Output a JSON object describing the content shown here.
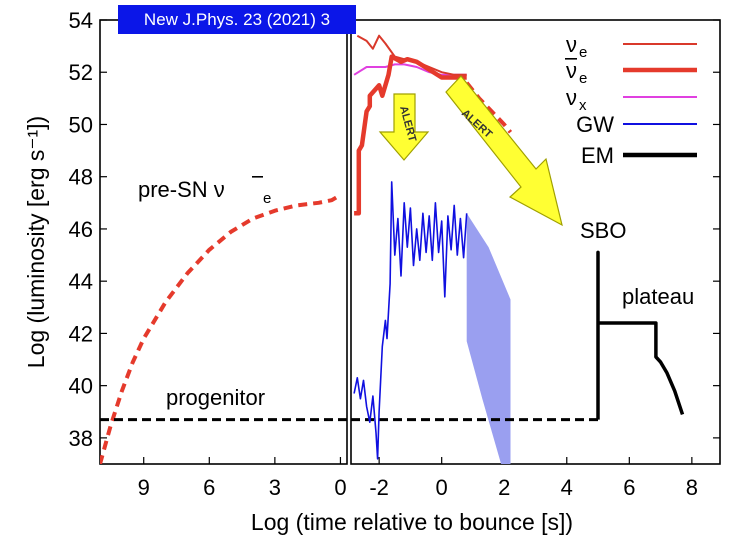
{
  "reference": "New J.Phys. 23 (2021) 3",
  "colors": {
    "nu_e": "#d9392b",
    "anti_nu_e": "#e53a2c",
    "nu_x": "#e040e0",
    "gw": "#1010e0",
    "gw_band": "#9a9ff0",
    "em": "#000000",
    "arrow_fill": "#ffff33",
    "arrow_edge": "#a0a000",
    "banner": "#0b16e8"
  },
  "chart_data": {
    "type": "line",
    "xlabel": "Log (time relative  to bounce [s])",
    "ylabel": "Log (luminosity [erg s⁻¹])",
    "ylim": [
      37,
      54
    ],
    "yticks": [
      "38",
      "40",
      "42",
      "44",
      "46",
      "48",
      "50",
      "52",
      "54"
    ],
    "left_panel": {
      "x_direction": "reversed",
      "xlim": [
        11,
        -0.3
      ],
      "xticks": [
        "9",
        "6",
        "3",
        "0"
      ]
    },
    "right_panel": {
      "xlim": [
        -2.9,
        8.9
      ],
      "xticks": [
        "-2",
        "0",
        "2",
        "4",
        "6",
        "8"
      ]
    },
    "legend": {
      "position": "top-right",
      "entries": [
        {
          "label": "ν",
          "sub": "e",
          "bar": false,
          "style": "thin"
        },
        {
          "label": "ν",
          "sub": "e",
          "bar": true,
          "style": "thick"
        },
        {
          "label": "ν",
          "sub": "x",
          "bar": false,
          "style": "thin"
        },
        {
          "label": "GW",
          "sub": "",
          "bar": false,
          "style": "thin"
        },
        {
          "label": "EM",
          "sub": "",
          "bar": false,
          "style": "thick"
        }
      ]
    },
    "annotations": {
      "pre_sn": "pre-SN ν",
      "pre_sn_sub": "e",
      "progenitor": "progenitor",
      "sbo": "SBO",
      "plateau": "plateau",
      "alert": "ALERT"
    },
    "series": [
      {
        "panel": "left",
        "style": "dashed",
        "points": [
          [
            11,
            37
          ],
          [
            10.5,
            38.5
          ],
          [
            10,
            39.8
          ],
          [
            9.5,
            40.9
          ],
          [
            9,
            41.8
          ],
          [
            8,
            43.2
          ],
          [
            7,
            44.3
          ],
          [
            6,
            45.2
          ],
          [
            5,
            45.9
          ],
          [
            4,
            46.4
          ],
          [
            3,
            46.7
          ],
          [
            2,
            46.9
          ],
          [
            1,
            47.0
          ],
          [
            0.4,
            47.1
          ],
          [
            0,
            47.3
          ]
        ]
      },
      {
        "panel": "right",
        "style": "dashed",
        "points": [
          [
            0.8,
            51.6
          ],
          [
            1.2,
            51.0
          ],
          [
            1.6,
            50.5
          ],
          [
            2.0,
            50.0
          ],
          [
            2.2,
            49.7
          ]
        ]
      },
      {
        "panel": "right",
        "style": "solid",
        "points": [
          [
            -2.7,
            53.4
          ],
          [
            -2.4,
            53.2
          ],
          [
            -2.2,
            52.9
          ],
          [
            -2.0,
            53.4
          ],
          [
            -1.8,
            53.1
          ],
          [
            -1.5,
            52.6
          ],
          [
            -1.2,
            52.5
          ],
          [
            -0.8,
            52.4
          ],
          [
            -0.4,
            52.2
          ],
          [
            0,
            52.0
          ],
          [
            0.4,
            51.9
          ],
          [
            0.8,
            51.9
          ]
        ]
      },
      {
        "panel": "right",
        "style": "solid",
        "points": [
          [
            -2.8,
            46.6
          ],
          [
            -2.65,
            46.6
          ],
          [
            -2.65,
            49.0
          ],
          [
            -2.55,
            49.2
          ],
          [
            -2.4,
            50.5
          ],
          [
            -2.3,
            50.7
          ],
          [
            -2.3,
            51.1
          ],
          [
            -2.0,
            51.5
          ],
          [
            -1.9,
            51.1
          ],
          [
            -1.7,
            51.9
          ],
          [
            -1.6,
            52.6
          ],
          [
            -1.45,
            52.5
          ],
          [
            -1.3,
            52.4
          ],
          [
            -1.1,
            52.5
          ],
          [
            -0.8,
            52.4
          ],
          [
            -0.4,
            52.1
          ],
          [
            0,
            51.8
          ],
          [
            0.4,
            51.8
          ],
          [
            0.8,
            51.8
          ]
        ]
      },
      {
        "panel": "right",
        "style": "solid",
        "points": [
          [
            -2.8,
            51.9
          ],
          [
            -2.4,
            52.2
          ],
          [
            -2.1,
            52.2
          ],
          [
            -1.8,
            52.2
          ],
          [
            -1.5,
            52.3
          ],
          [
            -1.2,
            52.3
          ],
          [
            -0.8,
            52.2
          ],
          [
            -0.4,
            52.0
          ],
          [
            0,
            51.9
          ],
          [
            0.4,
            51.9
          ],
          [
            0.8,
            51.9
          ]
        ]
      },
      {
        "panel": "right",
        "style": "solid",
        "points": [
          [
            -2.8,
            39.7
          ],
          [
            -2.7,
            40.3
          ],
          [
            -2.6,
            39.5
          ],
          [
            -2.5,
            40.2
          ],
          [
            -2.4,
            39.2
          ],
          [
            -2.3,
            38.6
          ],
          [
            -2.2,
            39.6
          ],
          [
            -2.1,
            38.2
          ],
          [
            -2.05,
            37.2
          ],
          [
            -2.0,
            39.0
          ],
          [
            -1.9,
            41.5
          ],
          [
            -1.8,
            42.5
          ],
          [
            -1.75,
            41.8
          ],
          [
            -1.65,
            43.9
          ],
          [
            -1.6,
            47.8
          ],
          [
            -1.5,
            45.0
          ],
          [
            -1.4,
            46.4
          ],
          [
            -1.3,
            44.2
          ],
          [
            -1.2,
            47.0
          ],
          [
            -1.1,
            45.3
          ],
          [
            -1.0,
            46.8
          ],
          [
            -0.9,
            44.6
          ],
          [
            -0.8,
            46.0
          ],
          [
            -0.7,
            44.8
          ],
          [
            -0.6,
            46.6
          ],
          [
            -0.5,
            45.1
          ],
          [
            -0.4,
            46.5
          ],
          [
            -0.3,
            44.8
          ],
          [
            -0.2,
            47.0
          ],
          [
            -0.1,
            45.1
          ],
          [
            0,
            46.3
          ],
          [
            0.1,
            43.4
          ],
          [
            0.2,
            46.5
          ],
          [
            0.3,
            45.2
          ],
          [
            0.4,
            46.9
          ],
          [
            0.5,
            45.0
          ],
          [
            0.6,
            46.4
          ],
          [
            0.7,
            44.9
          ],
          [
            0.8,
            46.6
          ]
        ]
      },
      {
        "panel": "right",
        "style": "band",
        "points": [
          [
            0.8,
            46.6
          ],
          [
            1.5,
            45.3
          ],
          [
            2.2,
            43.3
          ],
          [
            2.2,
            37.0
          ],
          [
            1.9,
            37.0
          ],
          [
            1.3,
            39.5
          ],
          [
            0.8,
            41.7
          ]
        ]
      },
      {
        "panel": "both",
        "style": "dashed",
        "y": 38.7,
        "x_left_from": 11,
        "x_right_to": 5.0
      },
      {
        "panel": "right",
        "style": "solid",
        "points": [
          [
            5.0,
            38.7
          ],
          [
            5.0,
            45.1
          ],
          [
            5.0,
            42.4
          ],
          [
            6.85,
            42.4
          ],
          [
            6.85,
            41.1
          ],
          [
            7.0,
            40.9
          ],
          [
            7.2,
            40.5
          ],
          [
            7.45,
            39.8
          ],
          [
            7.7,
            38.9
          ]
        ]
      }
    ]
  }
}
